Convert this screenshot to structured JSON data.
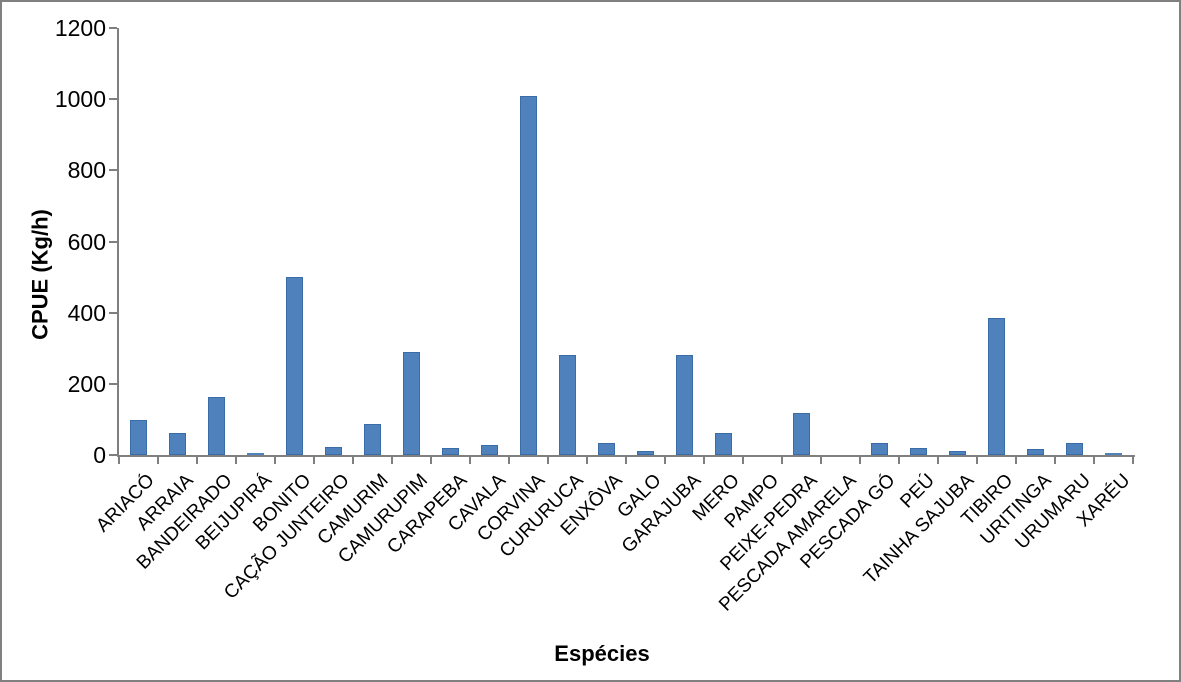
{
  "figure": {
    "background": "#FFFFFF",
    "border_color": "#808080"
  },
  "chart_data": {
    "type": "bar",
    "title": "",
    "xlabel": "Espécies",
    "ylabel": "CPUE (Kg/h)",
    "ylim": [
      0,
      1200
    ],
    "ytick_step": 200,
    "yticks": [
      0,
      200,
      400,
      600,
      800,
      1000,
      1200
    ],
    "grid": false,
    "legend": false,
    "bar_color": "#4F81BD",
    "bar_border_color": "#3A6CA8",
    "axis_color": "#7F7F7F",
    "text_color": "#000000",
    "categories": [
      "ARIACÓ",
      "ARRAIA",
      "BANDEIRADO",
      "BEIJUPIRÁ",
      "BONITO",
      "CAÇÃO JUNTEIRO",
      "CAMURIM",
      "CAMURUPIM",
      "CARAPEBA",
      "CAVALA",
      "CORVINA",
      "CURURUCA",
      "ENXÔVA",
      "GALO",
      "GARAJUBA",
      "MERO",
      "PAMPO",
      "PEIXE-PEDRA",
      "PESCADA AMARELA",
      "PESCADA GÓ",
      "PEÚ",
      "TAINHA SAJUBA",
      "TIBIRO",
      "URITINGA",
      "URUMARU",
      "XARÉU"
    ],
    "values": [
      98,
      62,
      164,
      6,
      500,
      22,
      86,
      290,
      20,
      28,
      1010,
      280,
      33,
      12,
      280,
      62,
      1,
      117,
      1,
      35,
      21,
      10,
      385,
      18,
      34,
      5
    ]
  }
}
